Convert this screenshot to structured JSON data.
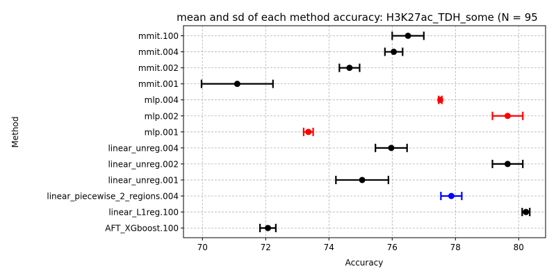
{
  "chart_data": {
    "type": "errorbar",
    "title": "mean and sd of each method accuracy: H3K27ac_TDH_some (N = 95",
    "xlabel": "Accuracy",
    "ylabel": "Method",
    "xlim": [
      69.4,
      80.85
    ],
    "xticks": [
      70,
      72,
      74,
      76,
      78,
      80
    ],
    "grid": true,
    "categories": [
      "mmit.100",
      "mmit.004",
      "mmit.002",
      "mmit.001",
      "mlp.004",
      "mlp.002",
      "mlp.001",
      "linear_unreg.004",
      "linear_unreg.002",
      "linear_unreg.001",
      "linear_piecewise_2_regions.004",
      "linear_L1reg.100",
      "AFT_XGboost.100"
    ],
    "points": [
      {
        "method": "mmit.100",
        "mean": 76.5,
        "sd": 0.5,
        "color": "#000000"
      },
      {
        "method": "mmit.004",
        "mean": 76.05,
        "sd": 0.28,
        "color": "#000000"
      },
      {
        "method": "mmit.002",
        "mean": 74.65,
        "sd": 0.32,
        "color": "#000000"
      },
      {
        "method": "mmit.001",
        "mean": 71.1,
        "sd": 1.13,
        "color": "#000000"
      },
      {
        "method": "mlp.004",
        "mean": 77.52,
        "sd": 0.05,
        "color": "#ff0000"
      },
      {
        "method": "mlp.002",
        "mean": 79.65,
        "sd": 0.48,
        "color": "#ff0000"
      },
      {
        "method": "mlp.001",
        "mean": 73.35,
        "sd": 0.15,
        "color": "#ff0000"
      },
      {
        "method": "linear_unreg.004",
        "mean": 75.97,
        "sd": 0.5,
        "color": "#000000"
      },
      {
        "method": "linear_unreg.002",
        "mean": 79.65,
        "sd": 0.48,
        "color": "#000000"
      },
      {
        "method": "linear_unreg.001",
        "mean": 75.05,
        "sd": 0.83,
        "color": "#000000"
      },
      {
        "method": "linear_piecewise_2_regions.004",
        "mean": 77.87,
        "sd": 0.33,
        "color": "#0000ff"
      },
      {
        "method": "linear_L1reg.100",
        "mean": 80.23,
        "sd": 0.12,
        "color": "#000000"
      },
      {
        "method": "AFT_XGboost.100",
        "mean": 72.07,
        "sd": 0.25,
        "color": "#000000"
      }
    ]
  }
}
